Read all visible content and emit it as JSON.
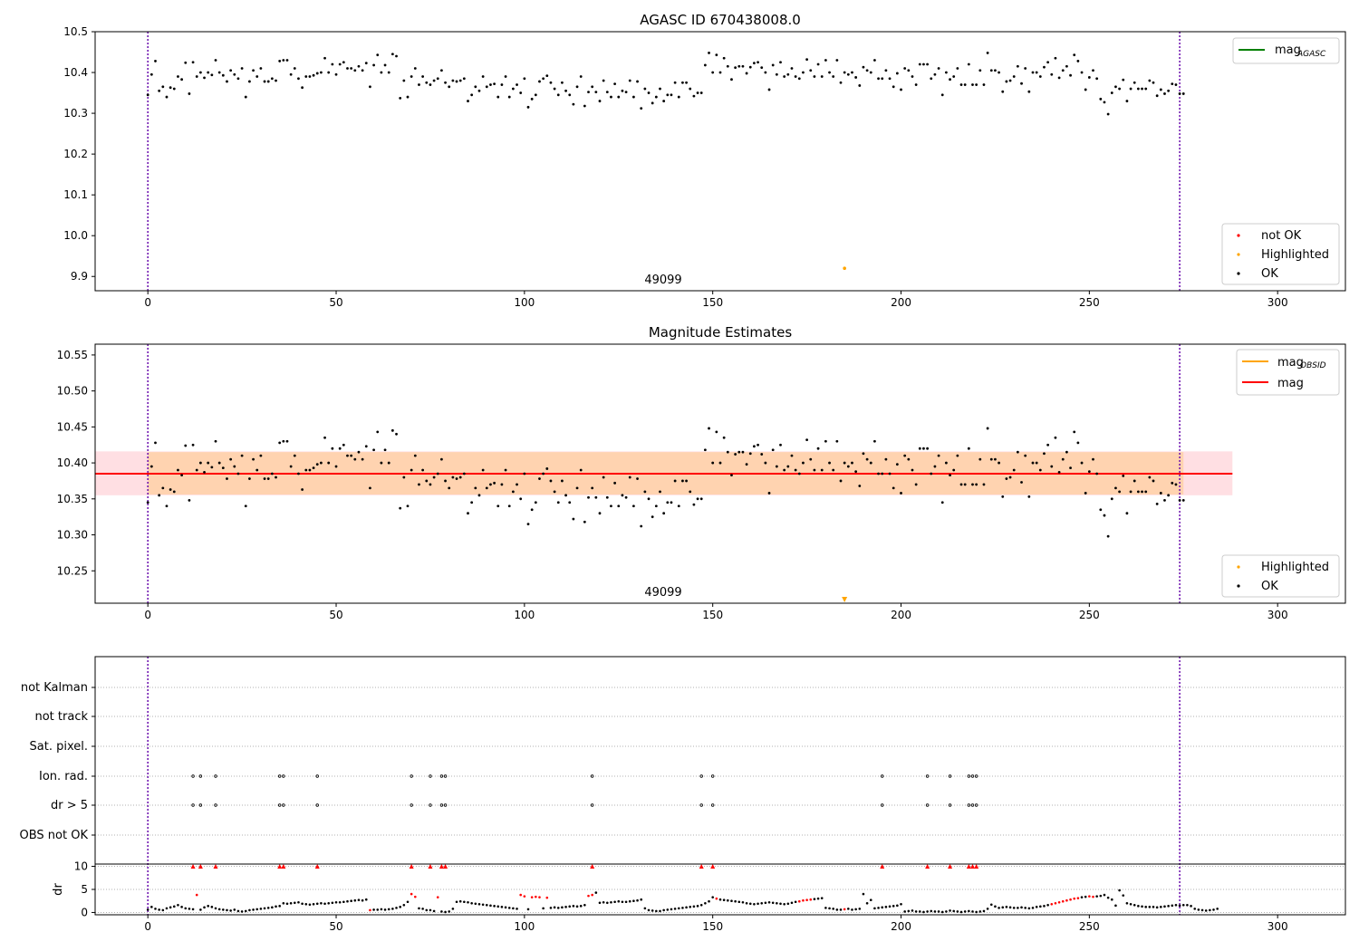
{
  "chart_data": [
    {
      "type": "scatter",
      "title": "AGASC ID 670438008.0",
      "annotation": "49099",
      "xlim": [
        -14,
        318
      ],
      "ylim": [
        9.865,
        10.5
      ],
      "xticks": [
        0,
        50,
        100,
        150,
        200,
        250,
        300
      ],
      "yticks": [
        9.9,
        10.0,
        10.1,
        10.2,
        10.3,
        10.4,
        10.5
      ],
      "ytick_labels": [
        "9.9",
        "10.0",
        "10.1",
        "10.2",
        "10.3",
        "10.4",
        "10.5"
      ],
      "vlines": [
        0,
        274
      ],
      "legend_upper": {
        "placement": "top-right",
        "entries": [
          {
            "label": "mag",
            "sub": "AGASC",
            "color": "#008000"
          }
        ]
      },
      "legend_lower": {
        "placement": "bottom-right",
        "entries": [
          {
            "label": "not OK",
            "color": "#ff0000"
          },
          {
            "label": "Highlighted",
            "color": "#ffa500"
          },
          {
            "label": "OK",
            "color": "#000000"
          }
        ]
      },
      "highlighted": [
        {
          "x": 185,
          "y": 9.92
        }
      ]
    },
    {
      "type": "scatter",
      "title": "Magnitude Estimates",
      "annotation": "49099",
      "xlim": [
        -14,
        318
      ],
      "ylim": [
        10.205,
        10.565
      ],
      "xticks": [
        0,
        50,
        100,
        150,
        200,
        250,
        300
      ],
      "yticks": [
        10.25,
        10.3,
        10.35,
        10.4,
        10.45,
        10.5,
        10.55
      ],
      "ytick_labels": [
        "10.25",
        "10.30",
        "10.35",
        "10.40",
        "10.45",
        "10.50",
        "10.55"
      ],
      "vlines": [
        0,
        274
      ],
      "mag_line": 10.385,
      "band_outer": [
        10.355,
        10.416
      ],
      "band_inner": [
        10.356,
        10.415
      ],
      "band_x": [
        -14,
        288
      ],
      "legend_upper": {
        "placement": "top-right",
        "entries": [
          {
            "label": "mag",
            "sub": "OBSID",
            "color": "#ffa500"
          },
          {
            "label": "mag",
            "sub": "",
            "color": "#ff0000"
          }
        ]
      },
      "legend_lower": {
        "placement": "bottom-right",
        "entries": [
          {
            "label": "Highlighted",
            "color": "#ffa500"
          },
          {
            "label": "OK",
            "color": "#000000"
          }
        ]
      },
      "highlighted_marker": {
        "x": 185,
        "y": 10.21
      }
    },
    {
      "type": "scatter",
      "title": "",
      "xlim": [
        -14,
        318
      ],
      "xticks": [
        0,
        50,
        100,
        150,
        200,
        250,
        300
      ],
      "vlines": [
        0,
        274
      ],
      "flag_rows": [
        "not Kalman",
        "not track",
        "Sat. pixel.",
        "Ion. rad.",
        "dr > 5",
        "OBS not OK"
      ],
      "flag_x": [
        12,
        14,
        18,
        35,
        36,
        45,
        70,
        75,
        78,
        79,
        118,
        147,
        150,
        195,
        207,
        213,
        218,
        219,
        220
      ],
      "dr_ylabel": "dr",
      "dr_yticks": [
        0,
        5,
        10
      ],
      "dr_ylim": [
        -0.5,
        10.5
      ],
      "dr_high": 10
    }
  ],
  "magnitude_series": [
    10.345,
    10.395,
    10.428,
    10.355,
    10.365,
    10.34,
    10.363,
    10.36,
    10.39,
    10.383,
    10.424,
    10.348,
    10.425,
    10.39,
    10.4,
    10.387,
    10.4,
    10.394,
    10.43,
    10.4,
    10.393,
    10.378,
    10.405,
    10.395,
    10.385,
    10.41,
    10.34,
    10.378,
    10.405,
    10.39,
    10.41,
    10.378,
    10.378,
    10.385,
    10.38,
    10.428,
    10.43,
    10.43,
    10.395,
    10.41,
    10.385,
    10.363,
    10.39,
    10.39,
    10.393,
    10.398,
    10.4,
    10.435,
    10.4,
    10.42,
    10.395,
    10.42,
    10.425,
    10.41,
    10.41,
    10.405,
    10.415,
    10.405,
    10.423,
    10.365,
    10.418,
    10.443,
    10.4,
    10.418,
    10.4,
    10.445,
    10.44,
    10.337,
    10.38,
    10.34,
    10.39,
    10.41,
    10.37,
    10.39,
    10.375,
    10.37,
    10.38,
    10.385,
    10.405,
    10.375,
    10.365,
    10.38,
    10.378,
    10.38,
    10.385,
    10.33,
    10.345,
    10.365,
    10.355,
    10.39,
    10.365,
    10.37,
    10.372,
    10.34,
    10.37,
    10.39,
    10.34,
    10.36,
    10.37,
    10.35,
    10.385,
    10.315,
    10.335,
    10.345,
    10.378,
    10.385,
    10.392,
    10.375,
    10.36,
    10.345,
    10.375,
    10.355,
    10.345,
    10.322,
    10.365,
    10.39,
    10.318,
    10.352,
    10.365,
    10.352,
    10.33,
    10.38,
    10.352,
    10.34,
    10.372,
    10.34,
    10.355,
    10.352,
    10.38,
    10.34,
    10.378,
    10.312,
    10.36,
    10.35,
    10.325,
    10.34,
    10.36,
    10.33,
    10.345,
    10.345,
    10.375,
    10.34,
    10.375,
    10.375,
    10.36,
    10.342,
    10.35,
    10.35,
    10.418,
    10.448,
    10.4,
    10.443,
    10.4,
    10.435,
    10.415,
    10.383,
    10.412,
    10.415,
    10.415,
    10.398,
    10.413,
    10.423,
    10.425,
    10.412,
    10.4,
    10.358,
    10.418,
    10.395,
    10.425,
    10.39,
    10.395,
    10.41,
    10.39,
    10.385,
    10.4,
    10.432,
    10.405,
    10.39,
    10.42,
    10.39,
    10.43,
    10.4,
    10.39,
    10.43,
    10.375,
    10.4,
    10.395,
    10.4,
    10.388,
    10.368,
    10.413,
    10.405,
    10.4,
    10.43,
    10.385,
    10.385,
    10.405,
    10.385,
    10.365,
    10.398,
    10.358,
    10.41,
    10.405,
    10.39,
    10.37,
    10.42,
    10.42,
    10.42,
    10.385,
    10.395,
    10.41,
    10.345,
    10.4,
    10.383,
    10.39,
    10.41,
    10.37,
    10.37,
    10.42,
    10.37,
    10.37,
    10.405,
    10.37,
    10.448,
    10.405,
    10.405,
    10.4,
    10.353,
    10.378,
    10.38,
    10.39,
    10.415,
    10.373,
    10.41,
    10.353,
    10.4,
    10.4,
    10.39,
    10.413,
    10.425,
    10.395,
    10.435,
    10.387,
    10.405,
    10.415,
    10.393,
    10.443,
    10.428,
    10.4,
    10.358,
    10.388,
    10.405,
    10.385,
    10.335,
    10.327,
    10.298,
    10.35,
    10.365,
    10.36,
    10.382,
    10.33,
    10.36,
    10.375,
    10.36,
    10.36,
    10.36,
    10.38,
    10.375,
    10.343,
    10.358,
    10.348,
    10.355,
    10.372,
    10.37,
    10.348,
    10.348
  ],
  "dr_series": [
    0.6,
    1.2,
    0.8,
    0.6,
    0.5,
    0.9,
    1.1,
    1.3,
    1.6,
    1.2,
    0.9,
    0.8,
    0.7,
    3.8,
    0.6,
    1.1,
    1.4,
    1.2,
    0.9,
    0.7,
    0.6,
    0.5,
    0.4,
    0.6,
    0.3,
    0.2,
    0.3,
    0.5,
    0.6,
    0.7,
    0.8,
    0.9,
    1.0,
    1.1,
    1.3,
    1.4,
    2.0,
    1.9,
    2.0,
    2.1,
    2.2,
    1.9,
    1.8,
    1.7,
    1.8,
    1.9,
    2.0,
    1.9,
    2.0,
    2.1,
    2.2,
    2.2,
    2.3,
    2.4,
    2.5,
    2.6,
    2.7,
    2.6,
    2.8,
    0.5,
    0.6,
    0.6,
    0.7,
    0.6,
    0.7,
    0.8,
    1.0,
    1.2,
    1.6,
    2.3,
    4.0,
    3.4,
    0.9,
    0.8,
    0.5,
    0.5,
    0.3,
    3.3,
    0.2,
    0.1,
    0.2,
    0.8,
    2.3,
    2.4,
    2.3,
    2.2,
    2.0,
    1.9,
    1.8,
    1.7,
    1.6,
    1.5,
    1.4,
    1.3,
    1.2,
    1.1,
    1.0,
    0.9,
    0.8,
    3.8,
    3.5,
    0.7,
    3.3,
    3.4,
    3.3,
    0.9,
    3.2,
    1.0,
    1.1,
    1.0,
    1.1,
    1.2,
    1.3,
    1.4,
    1.3,
    1.4,
    1.6,
    3.6,
    3.8,
    4.3,
    2.1,
    2.2,
    2.1,
    2.2,
    2.3,
    2.4,
    2.3,
    2.3,
    2.4,
    2.5,
    2.6,
    2.8,
    0.9,
    0.5,
    0.4,
    0.3,
    0.3,
    0.5,
    0.6,
    0.7,
    0.8,
    0.9,
    1.0,
    1.1,
    1.2,
    1.3,
    1.4,
    1.6,
    2.0,
    2.4,
    3.3,
    3.0,
    2.8,
    2.7,
    2.6,
    2.5,
    2.4,
    2.3,
    2.2,
    2.0,
    1.9,
    1.8,
    1.9,
    2.0,
    2.1,
    2.2,
    2.1,
    2.0,
    1.9,
    1.8,
    1.9,
    2.1,
    2.3,
    2.4,
    2.6,
    2.7,
    2.8,
    2.9,
    3.0,
    3.1,
    1.0,
    0.9,
    0.8,
    0.6,
    0.6,
    0.7,
    0.8,
    0.6,
    0.7,
    0.8,
    4.0,
    2.0,
    2.7,
    0.9,
    1.0,
    1.1,
    1.2,
    1.3,
    1.4,
    1.5,
    1.8,
    0.2,
    0.3,
    0.4,
    0.2,
    0.2,
    0.1,
    0.2,
    0.3,
    0.2,
    0.2,
    0.1,
    0.2,
    0.4,
    0.3,
    0.2,
    0.1,
    0.2,
    0.3,
    0.2,
    0.1,
    0.2,
    0.3,
    0.8,
    1.7,
    1.3,
    1.0,
    1.1,
    1.2,
    1.1,
    1.0,
    1.0,
    1.1,
    1.0,
    0.9,
    1.0,
    1.2,
    1.3,
    1.4,
    1.6,
    1.8,
    2.0,
    2.2,
    2.4,
    2.6,
    2.8,
    3.0,
    3.1,
    3.3,
    3.4,
    3.5,
    3.4,
    3.5,
    3.6,
    3.8,
    3.2,
    2.8,
    1.5,
    4.8,
    3.7,
    2.0,
    1.8,
    1.6,
    1.4,
    1.3,
    1.2,
    1.2,
    1.2,
    1.1,
    1.2,
    1.3,
    1.4,
    1.5,
    1.6,
    1.5,
    1.6,
    1.6,
    1.4,
    0.8,
    0.6,
    0.5,
    0.4,
    0.5,
    0.6,
    0.8
  ],
  "dr_red_indices": [
    13,
    59,
    70,
    71,
    77,
    99,
    100,
    102,
    103,
    104,
    106,
    117,
    118,
    151,
    173,
    174,
    175,
    176,
    185,
    240,
    241,
    242,
    243,
    244,
    245,
    246,
    247,
    250,
    251
  ]
}
